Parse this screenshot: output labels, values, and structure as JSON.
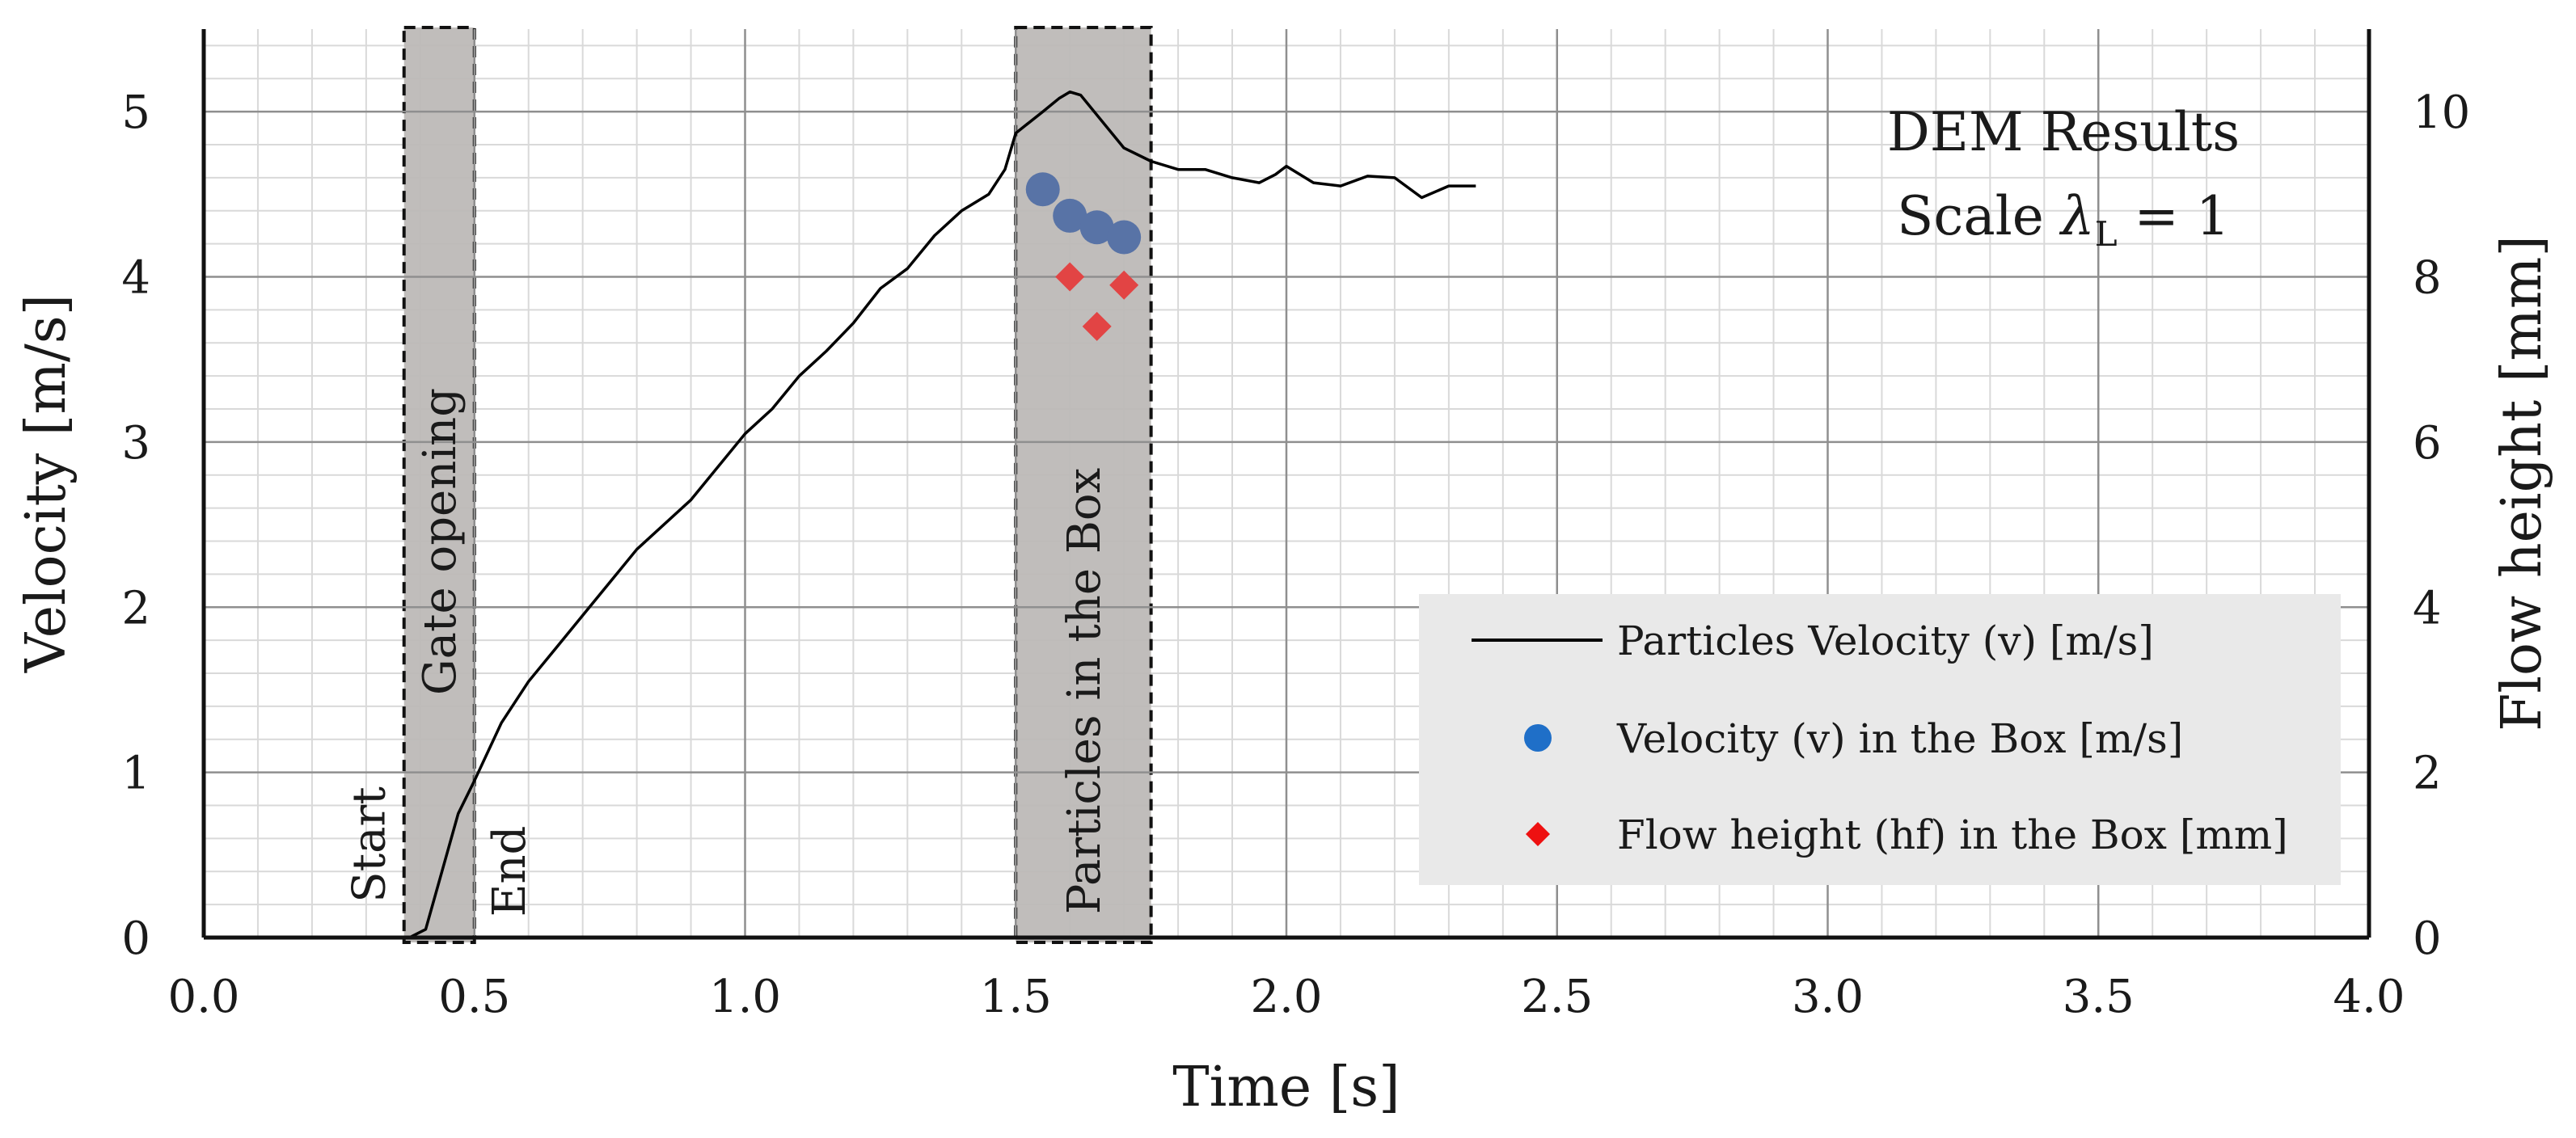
{
  "chart_data": {
    "type": "line",
    "title": "DEM Results",
    "subtitle": {
      "prefix": "Scale ",
      "symbol": "λ",
      "subscript": "L",
      "suffix": " = 1"
    },
    "xlabel": "Time [s]",
    "ylabel": "Velocity [m/s]",
    "y2label": "Flow height [mm]",
    "xlim": [
      0,
      4
    ],
    "ylim": [
      0,
      5.5
    ],
    "y2lim": [
      0,
      11
    ],
    "x_ticks": [
      0,
      0.5,
      1,
      1.5,
      2,
      2.5,
      3,
      3.5,
      4
    ],
    "x_tick_labels": [
      "0.0",
      "0.5",
      "1.0",
      "1.5",
      "2.0",
      "2.5",
      "3.0",
      "3.5",
      "4.0"
    ],
    "y_ticks": [
      0,
      1,
      2,
      3,
      4,
      5
    ],
    "y_tick_labels": [
      "0",
      "1",
      "2",
      "3",
      "4",
      "5"
    ],
    "y2_ticks": [
      0,
      2,
      4,
      6,
      8,
      10
    ],
    "y2_tick_labels": [
      "0",
      "2",
      "4",
      "6",
      "8",
      "10"
    ],
    "grid": true,
    "legend_position": "bottom-right",
    "regions": [
      {
        "name": "gate-opening",
        "x": [
          0.37,
          0.5
        ],
        "label": "Gate opening",
        "left_label": "Start",
        "right_label": "End"
      },
      {
        "name": "particles-in-box",
        "x": [
          1.5,
          1.75
        ],
        "label": "Particles in the Box"
      }
    ],
    "series": [
      {
        "name": "Particles Velocity (v) [m/s]",
        "kind": "line",
        "axis": "left",
        "color": "#000000",
        "x": [
          0.38,
          0.41,
          0.44,
          0.47,
          0.5,
          0.55,
          0.6,
          0.65,
          0.7,
          0.75,
          0.8,
          0.9,
          1.0,
          1.05,
          1.1,
          1.15,
          1.2,
          1.25,
          1.3,
          1.35,
          1.4,
          1.45,
          1.48,
          1.5,
          1.55,
          1.58,
          1.6,
          1.62,
          1.65,
          1.7,
          1.75,
          1.8,
          1.85,
          1.9,
          1.95,
          1.98,
          2.0,
          2.05,
          2.1,
          2.15,
          2.2,
          2.25,
          2.3,
          2.35
        ],
        "values": [
          0.0,
          0.05,
          0.4,
          0.75,
          0.95,
          1.3,
          1.55,
          1.75,
          1.95,
          2.15,
          2.35,
          2.65,
          3.05,
          3.2,
          3.4,
          3.55,
          3.72,
          3.93,
          4.05,
          4.25,
          4.4,
          4.5,
          4.65,
          4.87,
          5.0,
          5.08,
          5.12,
          5.1,
          4.98,
          4.78,
          4.7,
          4.65,
          4.65,
          4.6,
          4.57,
          4.62,
          4.67,
          4.57,
          4.55,
          4.61,
          4.6,
          4.48,
          4.55,
          4.55
        ]
      },
      {
        "name": "Velocity (v)  in the Box [m/s]",
        "kind": "scatter",
        "marker": "circle",
        "axis": "left",
        "color": "#5873a6",
        "legend_color": "#1f6fc8",
        "x": [
          1.55,
          1.6,
          1.65,
          1.7
        ],
        "values": [
          4.53,
          4.37,
          4.3,
          4.24
        ]
      },
      {
        "name": "Flow height (hf) in the Box [mm]",
        "kind": "scatter",
        "marker": "diamond",
        "axis": "right",
        "color": "#e24444",
        "legend_color": "#ee1111",
        "x": [
          1.6,
          1.65,
          1.7
        ],
        "values": [
          8.0,
          7.4,
          7.9
        ]
      }
    ]
  }
}
